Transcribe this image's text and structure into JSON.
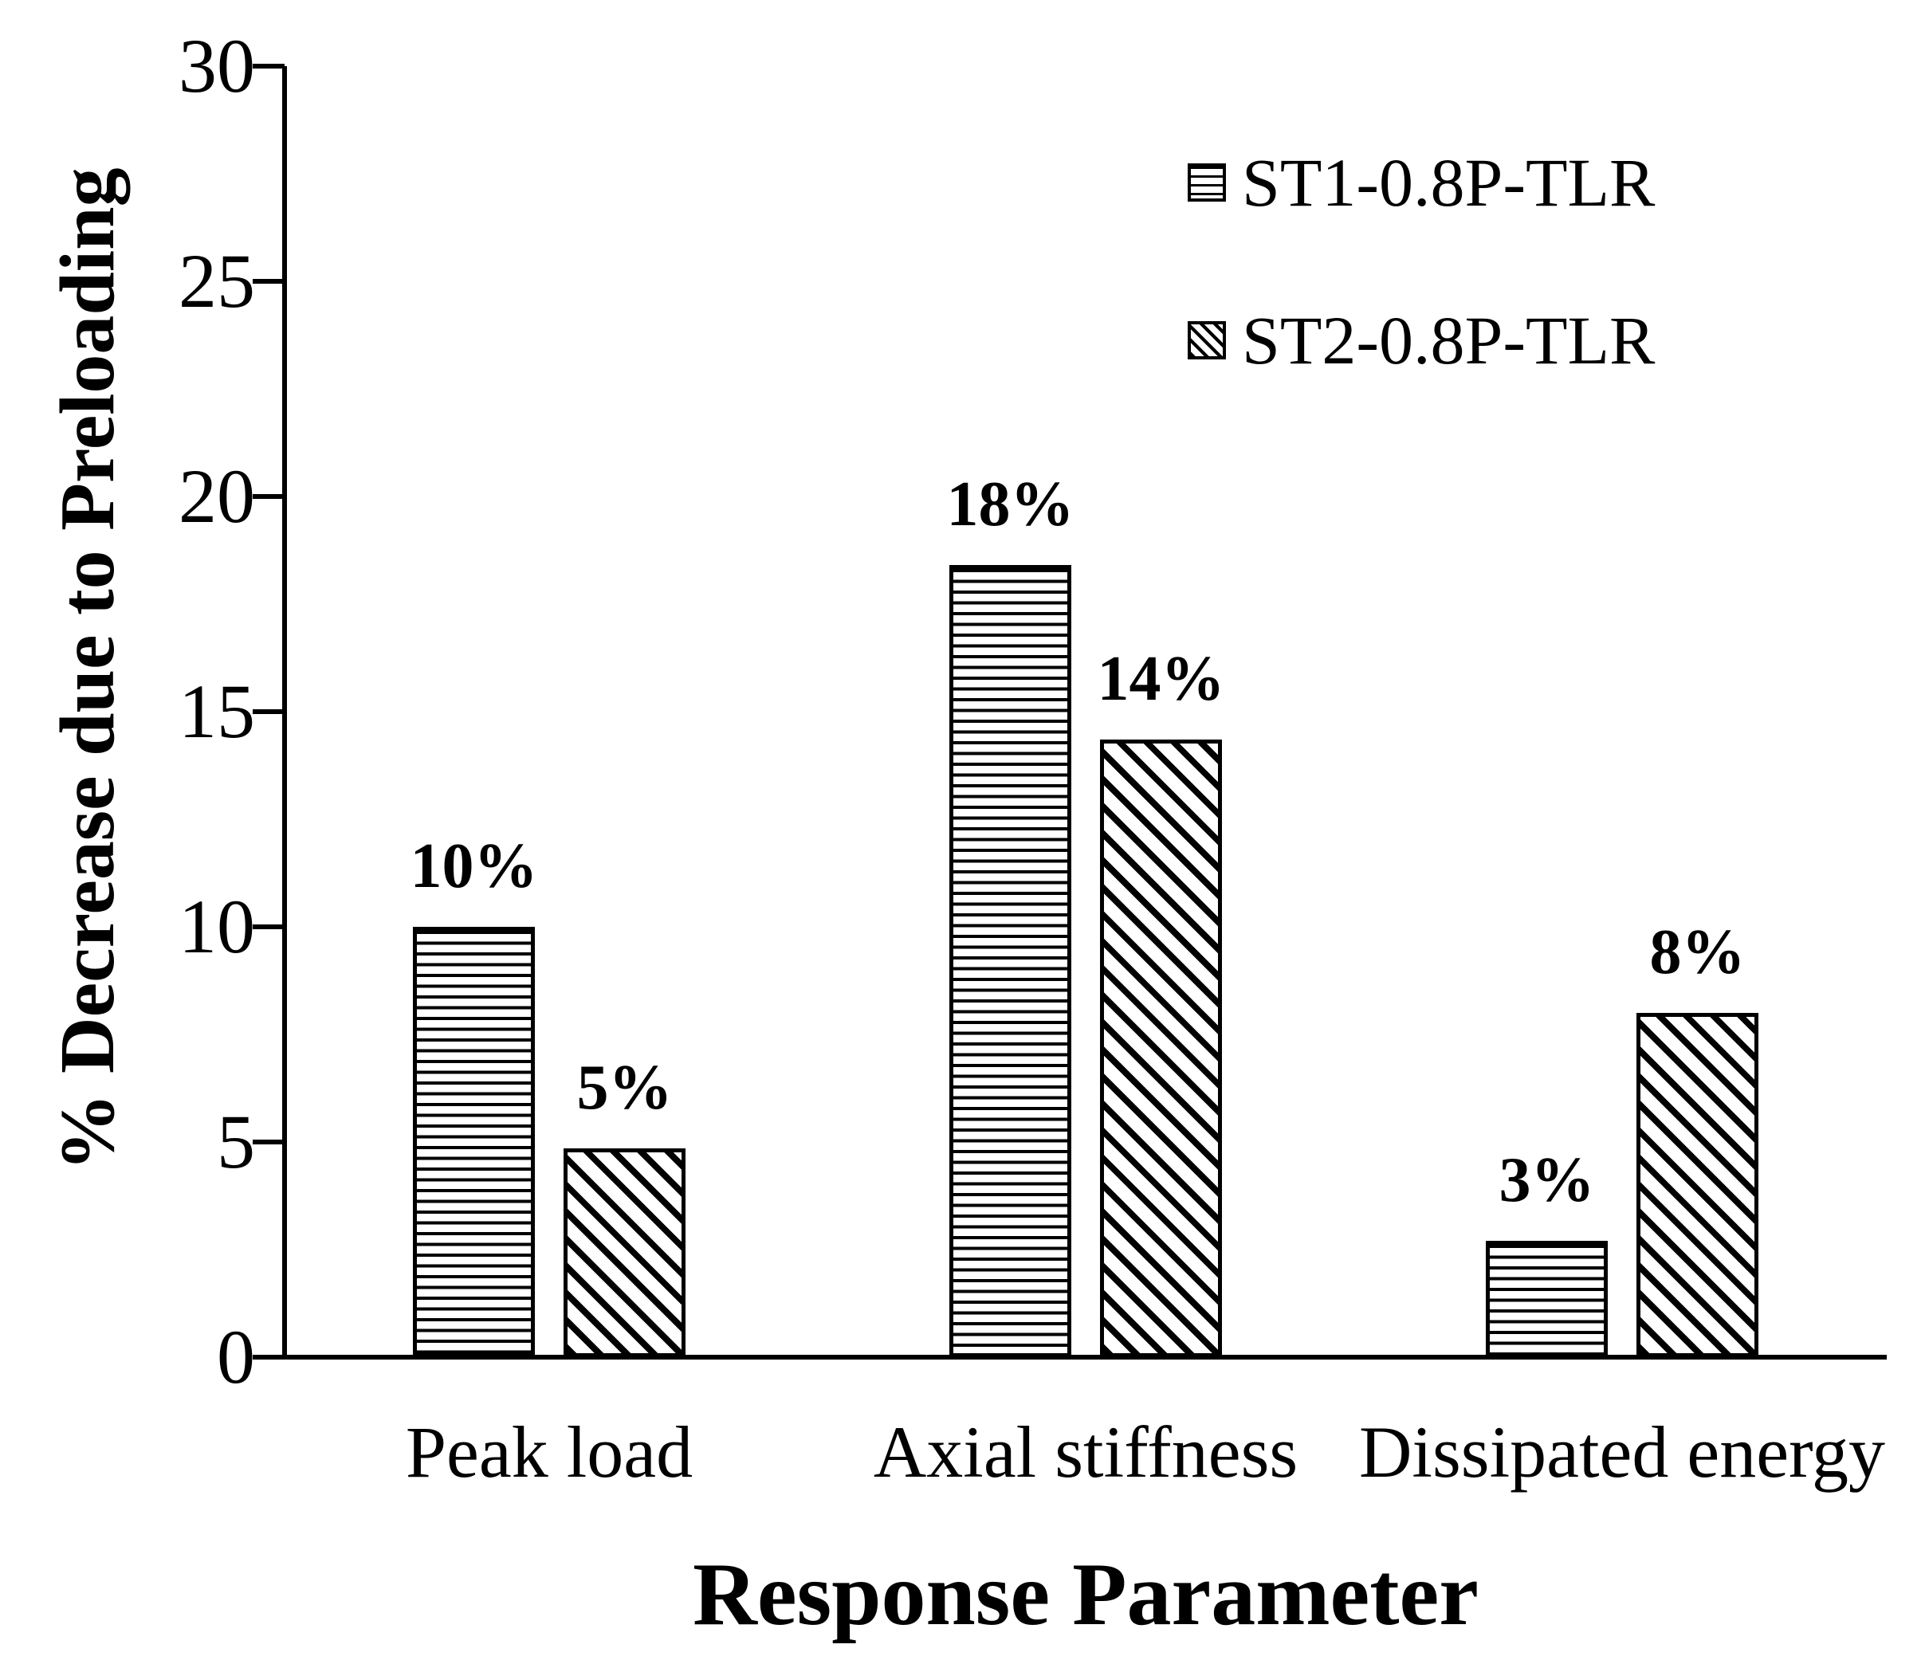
{
  "figure": {
    "background": "#ffffff",
    "foreground": "#000000"
  },
  "chart_data": {
    "type": "bar",
    "title": "",
    "xlabel": "Response Parameter",
    "ylabel": "% Decrease due to Preloading",
    "categories": [
      "Peak load",
      "Axial stiffness",
      "Dissipated energy"
    ],
    "series": [
      {
        "name": "ST1-0.8P-TLR",
        "pattern": "horizontal-lines",
        "values": [
          10,
          18,
          3
        ],
        "labels": [
          "10%",
          "18%",
          "3%"
        ],
        "drawn_values": [
          10.0,
          18.4,
          2.7
        ]
      },
      {
        "name": "ST2-0.8P-TLR",
        "pattern": "diagonal-lines",
        "values": [
          5,
          14,
          8
        ],
        "labels": [
          "5%",
          "14%",
          "8%"
        ],
        "drawn_values": [
          4.85,
          14.35,
          8.0
        ]
      }
    ],
    "ylim": [
      0,
      30
    ],
    "yticks": [
      "0",
      "5",
      "10",
      "15",
      "20",
      "25",
      "30"
    ],
    "grid": false,
    "legend_position": "upper-right"
  }
}
